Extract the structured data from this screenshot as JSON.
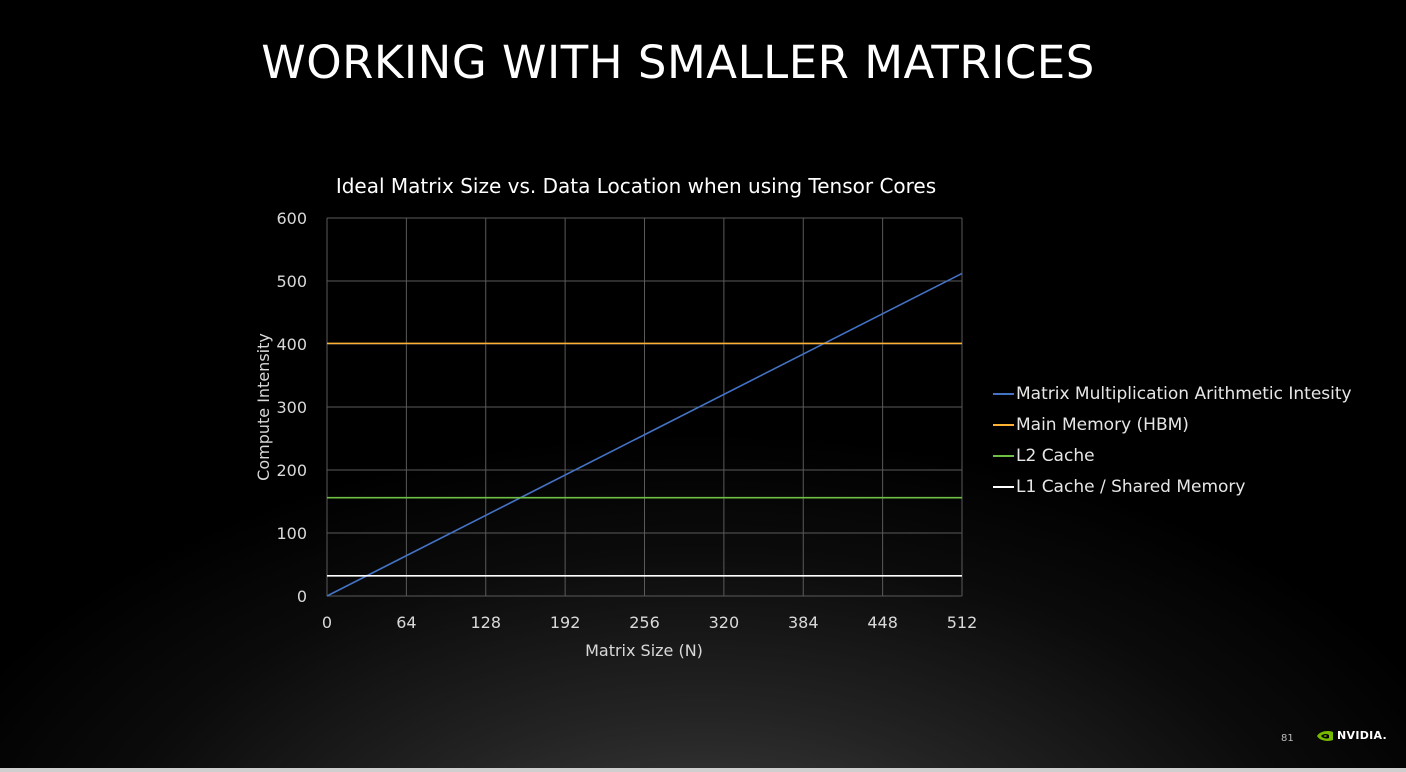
{
  "slide": {
    "title": "WORKING WITH SMALLER MATRICES",
    "page_number": "81",
    "logo_text": "NVIDIA."
  },
  "chart_data": {
    "type": "line",
    "title": "Ideal Matrix Size vs. Data Location when using Tensor Cores",
    "xlabel": "Matrix Size (N)",
    "ylabel": "Compute Intensity",
    "xlim": [
      0,
      512
    ],
    "ylim": [
      0,
      600
    ],
    "xticks": [
      0,
      64,
      128,
      192,
      256,
      320,
      384,
      448,
      512
    ],
    "yticks": [
      0,
      100,
      200,
      300,
      400,
      500,
      600
    ],
    "grid": true,
    "legend_position": "right",
    "series": [
      {
        "name": "Matrix Multiplication Arithmetic Intesity",
        "color": "#4472c4",
        "x": [
          0,
          512
        ],
        "y": [
          0,
          512
        ]
      },
      {
        "name": "Main Memory (HBM)",
        "color": "#ffb133",
        "x": [
          0,
          512
        ],
        "y": [
          401,
          401
        ]
      },
      {
        "name": "L2 Cache",
        "color": "#6ec043",
        "x": [
          0,
          512
        ],
        "y": [
          156,
          156
        ]
      },
      {
        "name": "L1 Cache / Shared Memory",
        "color": "#ffffff",
        "x": [
          0,
          512
        ],
        "y": [
          32,
          32
        ]
      }
    ]
  }
}
